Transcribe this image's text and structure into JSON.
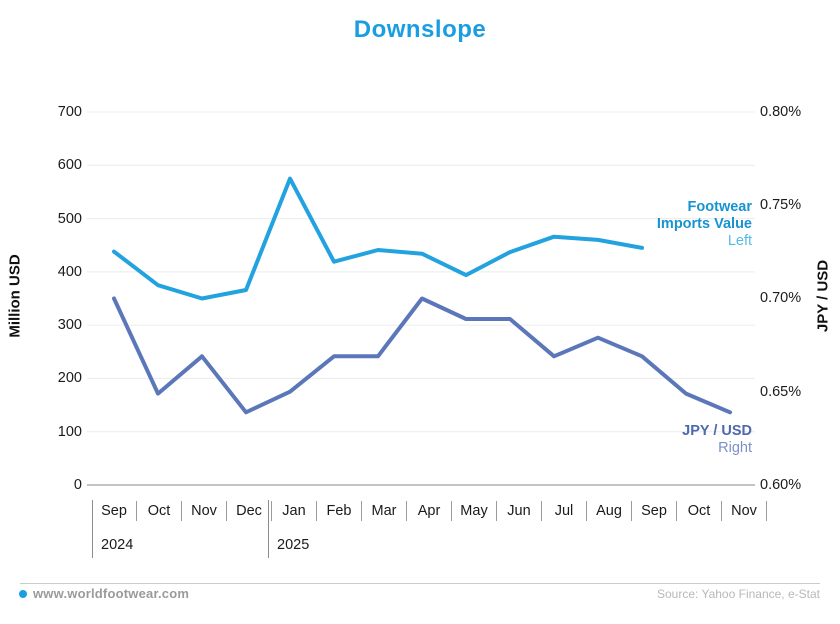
{
  "page": {
    "title": "Downslope"
  },
  "footer": {
    "site": "www.worldfootwear.com",
    "source": "Source: Yahoo Finance, e-Stat",
    "dot_color": "#1b9de2"
  },
  "chart_data": {
    "type": "line",
    "title": "Downslope",
    "title_color": "#1b9de2",
    "grid": true,
    "categories": [
      "Sep",
      "Oct",
      "Nov",
      "Dec",
      "Jan",
      "Feb",
      "Mar",
      "Apr",
      "May",
      "Jun",
      "Jul",
      "Aug",
      "Sep",
      "Oct",
      "Nov"
    ],
    "years": {
      "first": "2024",
      "second": "2025"
    },
    "left_axis": {
      "label": "Million USD",
      "min": 0,
      "max": 700,
      "tick_step": 100,
      "ticks": [
        "700",
        "600",
        "500",
        "400",
        "300",
        "200",
        "100",
        "0"
      ]
    },
    "right_axis": {
      "label": "JPY / USD",
      "min_pct": 0.6,
      "max_pct": 0.8,
      "tick_step_pct": 0.05,
      "ticks": [
        "0.80%",
        "0.75%",
        "0.70%",
        "0.65%",
        "0.60%"
      ]
    },
    "series": [
      {
        "name": "Footwear Imports Value",
        "axis": "left",
        "color": "#22a2df",
        "label_lines": [
          "Footwear",
          "Imports Value"
        ],
        "side_label": "Left",
        "values": [
          438,
          375,
          350,
          366,
          575,
          419,
          441,
          434,
          394,
          437,
          466,
          460,
          445
        ]
      },
      {
        "name": "JPY / USD",
        "axis": "right",
        "color": "#5c77b9",
        "label_lines": [
          "JPY / USD"
        ],
        "side_label": "Right",
        "values_pct": [
          0.7,
          0.649,
          0.669,
          0.639,
          0.65,
          0.669,
          0.669,
          0.7,
          0.689,
          0.689,
          0.669,
          0.679,
          0.669,
          0.649,
          0.639
        ]
      }
    ]
  }
}
